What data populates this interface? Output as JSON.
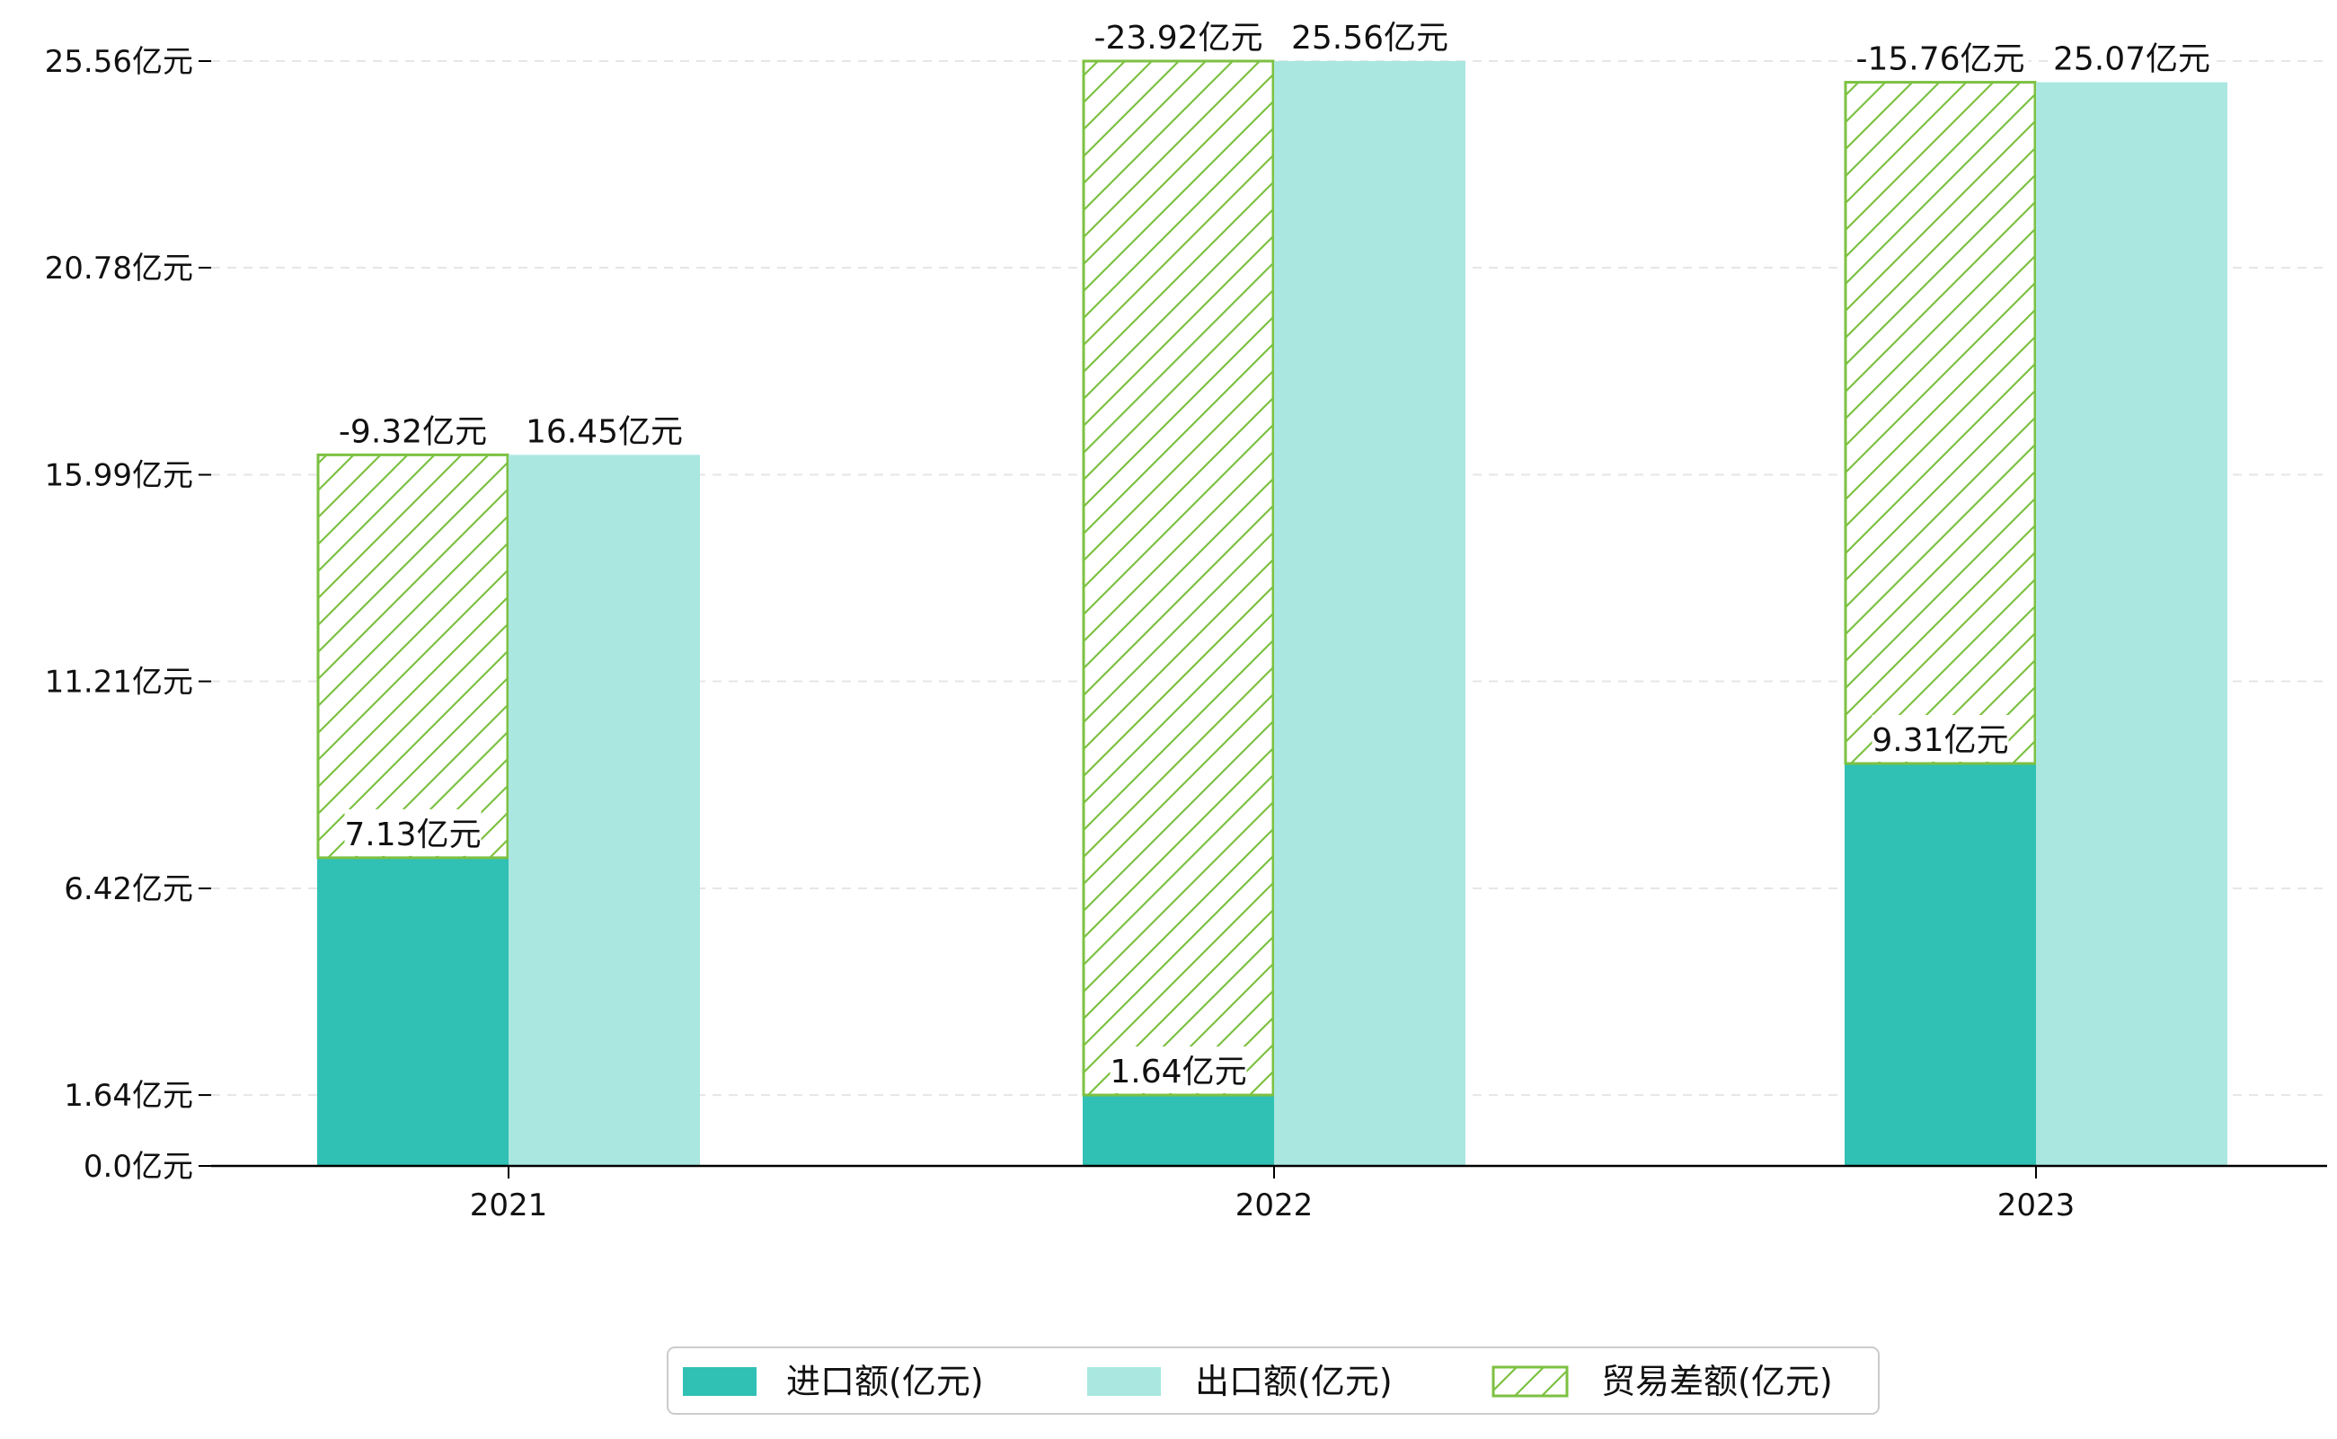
{
  "chart_data": {
    "type": "bar",
    "categories": [
      "2021",
      "2022",
      "2023"
    ],
    "series": [
      {
        "name": "进口额(亿元)",
        "values": [
          7.13,
          1.64,
          9.31
        ]
      },
      {
        "name": "出口额(亿元)",
        "values": [
          16.45,
          25.56,
          25.07
        ]
      },
      {
        "name": "贸易差额(亿元)",
        "values": [
          -9.32,
          -23.92,
          -15.76
        ]
      }
    ],
    "data_labels": {
      "import": [
        "7.13亿元",
        "1.64亿元",
        "9.31亿元"
      ],
      "export": [
        "16.45亿元",
        "25.56亿元",
        "25.07亿元"
      ],
      "balance": [
        "-9.32亿元",
        "-23.92亿元",
        "-15.76亿元"
      ]
    },
    "yticks": [
      0.0,
      1.64,
      6.42,
      11.21,
      15.99,
      20.78,
      25.56
    ],
    "ytick_labels": [
      "0.0亿元",
      "1.64亿元",
      "6.42亿元",
      "11.21亿元",
      "15.99亿元",
      "20.78亿元",
      "25.56亿元"
    ],
    "ylim": [
      0,
      25.56
    ],
    "title": "",
    "xlabel": "",
    "ylabel": "",
    "grid": "horizontal dashed",
    "legend_position": "bottom-center",
    "colors": {
      "import": "#30c0b4",
      "export": "#aae7e1",
      "balance_hatch": "#7dc142",
      "grid": "#e6e6e6",
      "axis": "#000000"
    }
  }
}
